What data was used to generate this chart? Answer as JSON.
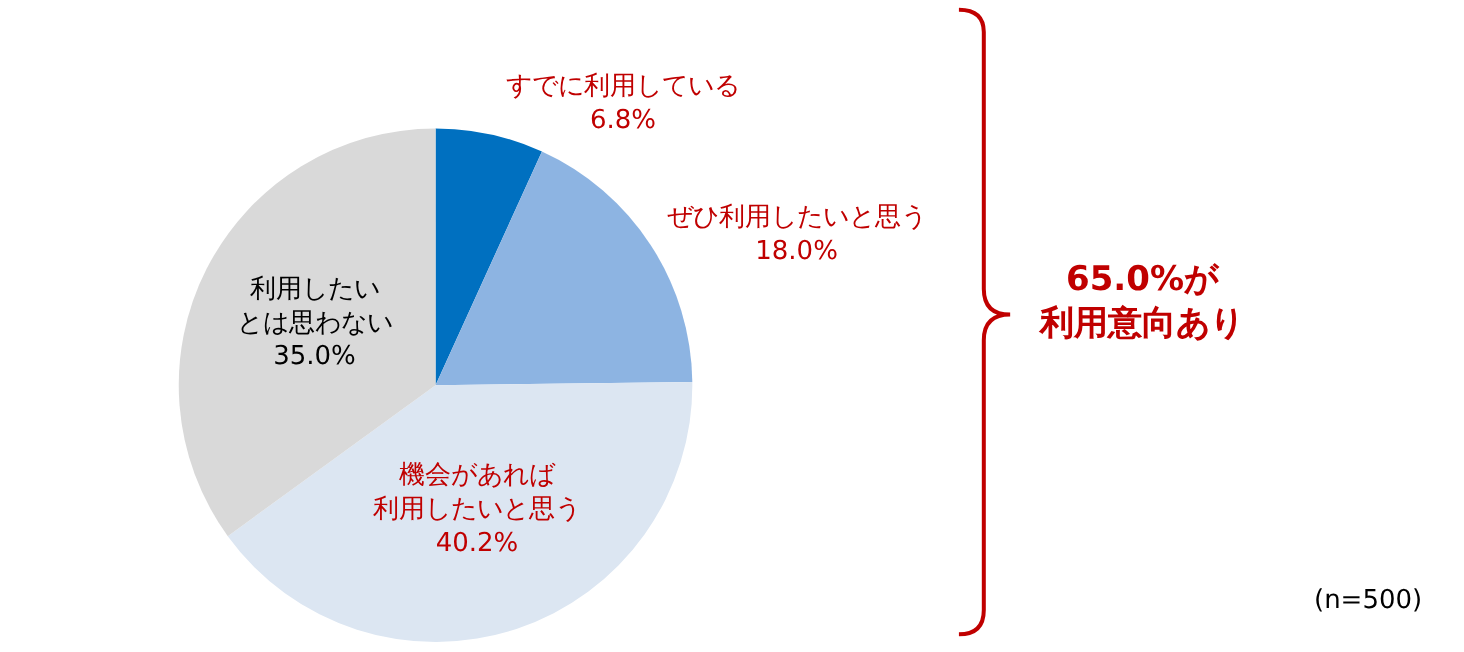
{
  "chart_data": {
    "type": "pie",
    "categories": [
      "すでに利用している",
      "ぜひ利用したいと思う",
      "機会があれば利用したいと思う",
      "利用したいとは思わない"
    ],
    "values": [
      6.8,
      18.0,
      40.2,
      35.0
    ],
    "value_labels": [
      "6.8%",
      "18.0%",
      "40.2%",
      "35.0%"
    ],
    "colors": [
      "#0070c0",
      "#8db4e2",
      "#dce6f2",
      "#d9d9d9"
    ],
    "annotations": [
      "65.0%が利用意向あり",
      "(n=500)"
    ],
    "legend": false
  }
}
